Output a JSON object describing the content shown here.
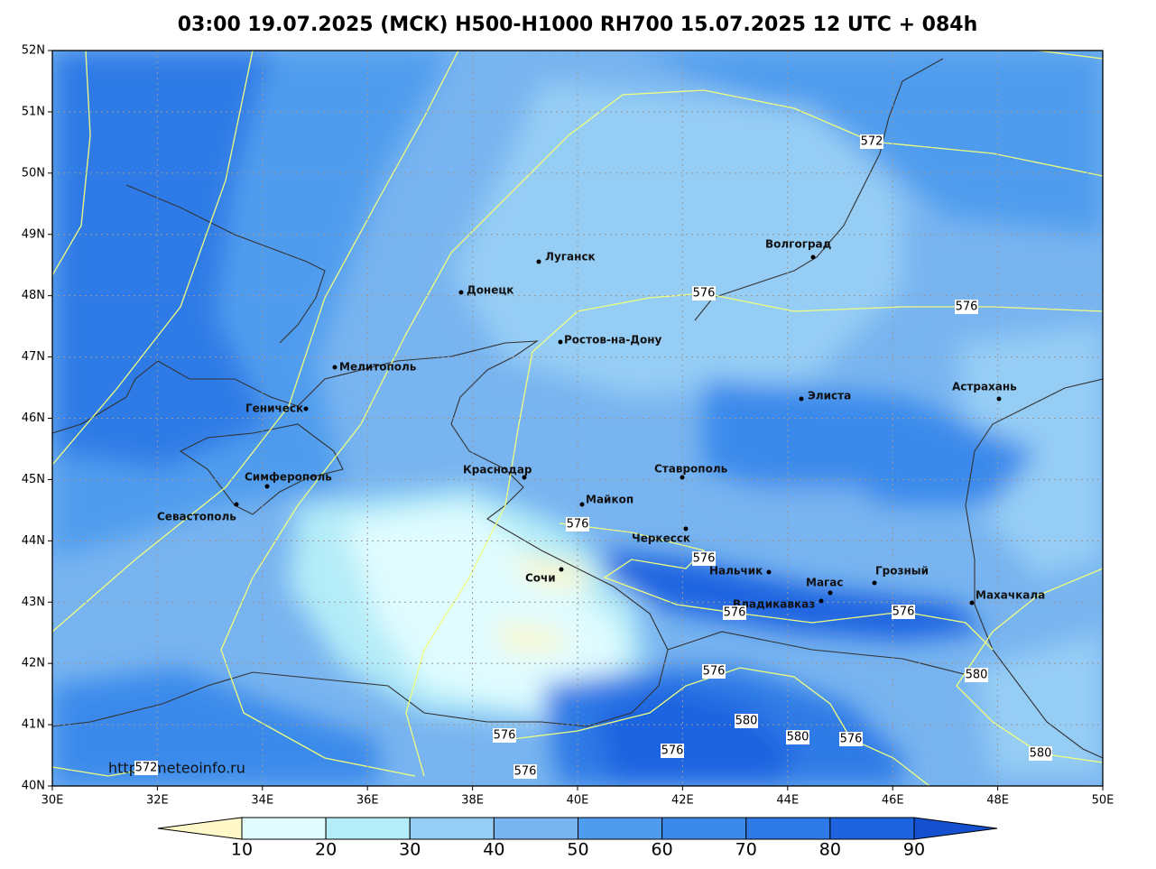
{
  "title": "03:00 19.07.2025 (MCK) H500-H1000 RH700 15.07.2025 12 UTC + 084h",
  "lat_labels": [
    "40N",
    "41N",
    "42N",
    "43N",
    "44N",
    "45N",
    "46N",
    "47N",
    "48N",
    "49N",
    "50N",
    "51N",
    "52N"
  ],
  "lon_labels": [
    "30E",
    "32E",
    "34E",
    "36E",
    "38E",
    "40E",
    "42E",
    "44E",
    "46E",
    "48E",
    "50E"
  ],
  "cities": [
    "Волгоград",
    "Луганск",
    "Донецк",
    "Ростов-на-Дону",
    "Мелитополь",
    "Геническ",
    "Элиста",
    "Астрахань",
    "Симферополь",
    "Севастополь",
    "Краснодар",
    "Майкоп",
    "Ставрополь",
    "Черкесск",
    "Сочи",
    "Нальчик",
    "Магас",
    "Грозный",
    "Владикавказ",
    "Махачкала"
  ],
  "contour_labels": [
    572,
    576,
    576,
    576,
    576,
    576,
    576,
    576,
    580,
    580,
    580,
    576,
    576,
    576,
    576,
    580,
    572
  ],
  "credit": "http://meteoinfo.ru",
  "colorbar": {
    "labels": [
      10,
      20,
      30,
      40,
      50,
      60,
      70,
      80,
      90
    ],
    "colors": [
      "#fff8c8",
      "#e0fcff",
      "#b4ecf8",
      "#96cdf5",
      "#78b4f0",
      "#4f9cee",
      "#3b8aeb",
      "#2d7ae6",
      "#1e64e0",
      "#1450d0"
    ]
  }
}
